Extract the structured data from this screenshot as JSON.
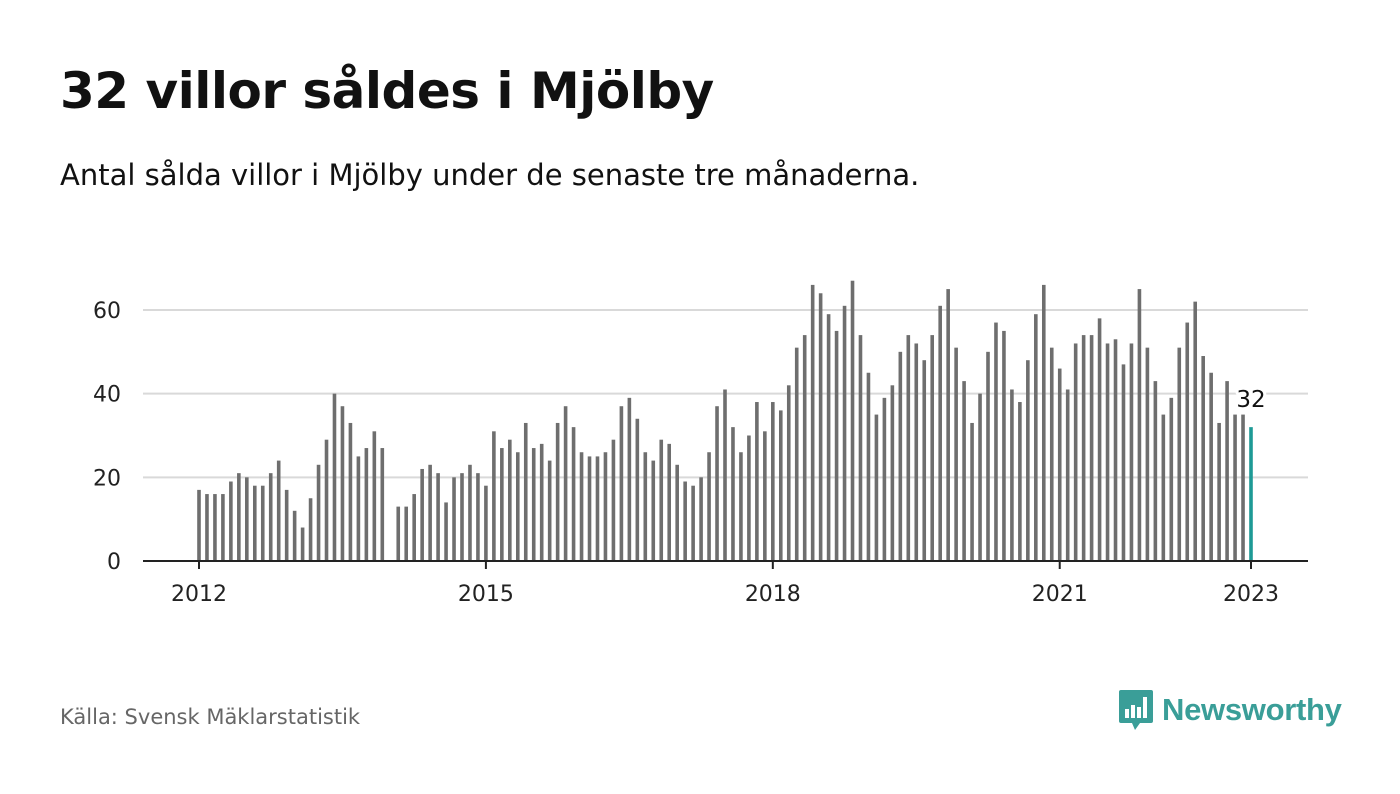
{
  "header": {
    "title": "32 villor såldes i Mjölby",
    "subtitle": "Antal sålda villor i Mjölby under de senaste tre månaderna."
  },
  "footer": {
    "source": "Källa: Svensk Mäklarstatistik",
    "brand": "Newsworthy",
    "brand_icon": "bar-chart-speech-bubble-icon"
  },
  "colors": {
    "bar": "#6e6e6e",
    "highlight": "#1e9a96",
    "grid": "#d9d9d9",
    "axis": "#222222",
    "brand": "#3a9e98"
  },
  "chart_data": {
    "type": "bar",
    "title": "32 villor såldes i Mjölby",
    "subtitle": "Antal sålda villor i Mjölby under de senaste tre månaderna.",
    "xlabel": "",
    "ylabel": "",
    "ylim": [
      0,
      70
    ],
    "yticks": [
      0,
      20,
      40,
      60
    ],
    "xticks": [
      {
        "label": "2012",
        "year": 2012
      },
      {
        "label": "2015",
        "year": 2015
      },
      {
        "label": "2018",
        "year": 2018
      },
      {
        "label": "2021",
        "year": 2021
      },
      {
        "label": "2023",
        "year": 2023
      }
    ],
    "grid": true,
    "x_start": "2012-01",
    "x_end": "2023-01",
    "frequency": "monthly",
    "values": [
      17,
      16,
      16,
      16,
      19,
      21,
      20,
      18,
      18,
      21,
      24,
      17,
      12,
      8,
      15,
      23,
      29,
      40,
      37,
      33,
      25,
      27,
      31,
      27,
      null,
      13,
      13,
      16,
      22,
      23,
      21,
      14,
      20,
      21,
      23,
      21,
      18,
      31,
      27,
      29,
      26,
      33,
      27,
      28,
      24,
      33,
      37,
      32,
      26,
      25,
      25,
      26,
      29,
      37,
      39,
      34,
      26,
      24,
      29,
      28,
      23,
      19,
      18,
      20,
      26,
      37,
      41,
      32,
      26,
      30,
      38,
      31,
      38,
      36,
      42,
      51,
      54,
      66,
      64,
      59,
      55,
      61,
      67,
      54,
      45,
      35,
      39,
      42,
      50,
      54,
      52,
      48,
      54,
      61,
      65,
      51,
      43,
      33,
      40,
      50,
      57,
      55,
      41,
      38,
      48,
      59,
      66,
      51,
      46,
      41,
      52,
      54,
      54,
      58,
      52,
      53,
      47,
      52,
      65,
      51,
      43,
      35,
      39,
      51,
      57,
      62,
      49,
      45,
      33,
      43,
      35,
      35,
      32
    ],
    "highlight": {
      "label": "32",
      "x": "2023-01",
      "value": 32
    }
  }
}
